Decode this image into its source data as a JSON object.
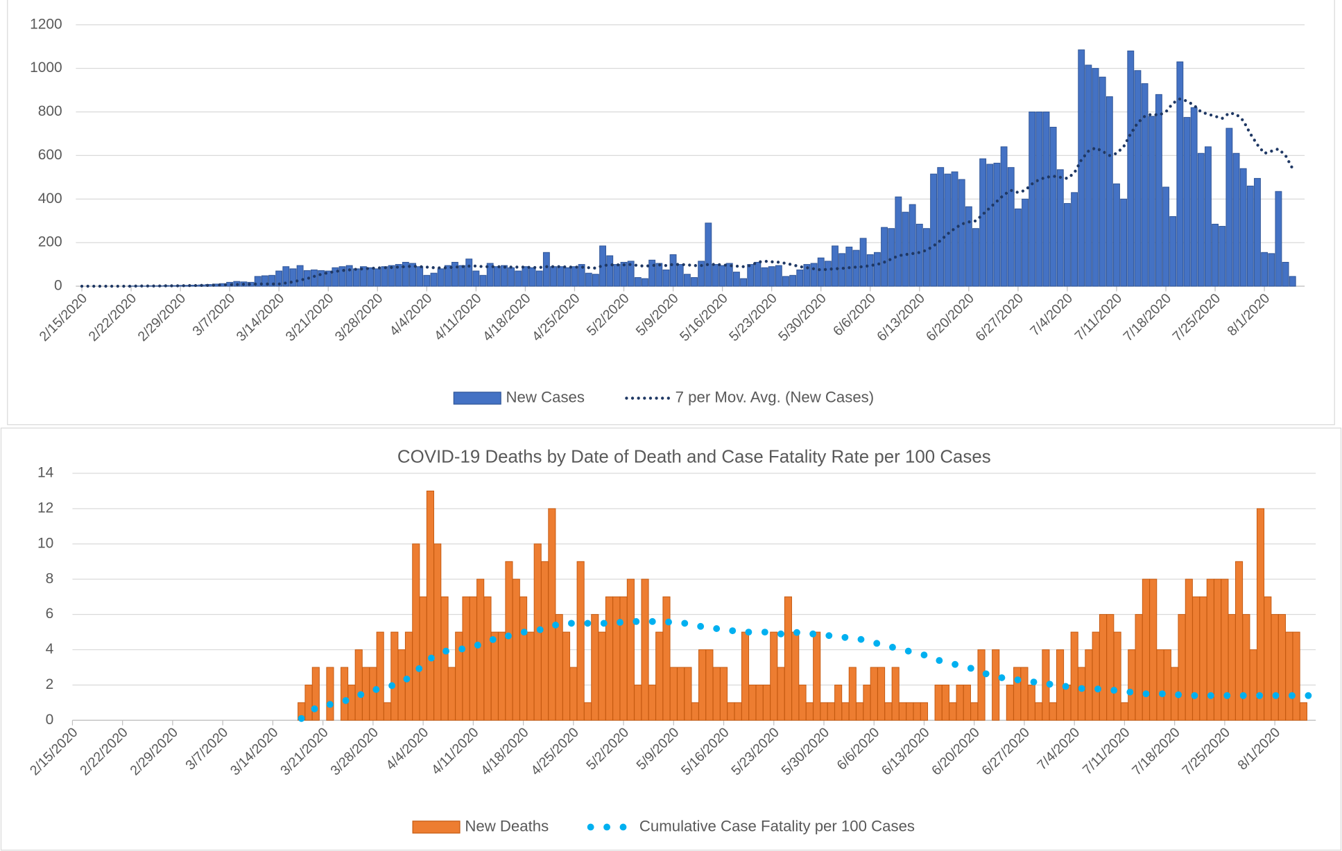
{
  "chart_data": [
    {
      "type": "bar",
      "categories": [
        "2/15/2020",
        null,
        null,
        null,
        null,
        null,
        null,
        "2/22/2020",
        null,
        null,
        null,
        null,
        null,
        null,
        "2/29/2020",
        null,
        null,
        null,
        null,
        null,
        null,
        "3/7/2020",
        null,
        null,
        null,
        null,
        null,
        null,
        "3/14/2020",
        null,
        null,
        null,
        null,
        null,
        null,
        "3/21/2020",
        null,
        null,
        null,
        null,
        null,
        null,
        "3/28/2020",
        null,
        null,
        null,
        null,
        null,
        null,
        "4/4/2020",
        null,
        null,
        null,
        null,
        null,
        null,
        "4/11/2020",
        null,
        null,
        null,
        null,
        null,
        null,
        "4/18/2020",
        null,
        null,
        null,
        null,
        null,
        null,
        "4/25/2020",
        null,
        null,
        null,
        null,
        null,
        null,
        "5/2/2020",
        null,
        null,
        null,
        null,
        null,
        null,
        "5/9/2020",
        null,
        null,
        null,
        null,
        null,
        null,
        "5/16/2020",
        null,
        null,
        null,
        null,
        null,
        null,
        "5/23/2020",
        null,
        null,
        null,
        null,
        null,
        null,
        "5/30/2020",
        null,
        null,
        null,
        null,
        null,
        null,
        "6/6/2020",
        null,
        null,
        null,
        null,
        null,
        null,
        "6/13/2020",
        null,
        null,
        null,
        null,
        null,
        null,
        "6/20/2020",
        null,
        null,
        null,
        null,
        null,
        null,
        "6/27/2020",
        null,
        null,
        null,
        null,
        null,
        null,
        "7/4/2020",
        null,
        null,
        null,
        null,
        null,
        null,
        "7/11/2020",
        null,
        null,
        null,
        null,
        null,
        null,
        "7/18/2020",
        null,
        null,
        null,
        null,
        null,
        null,
        "7/25/2020",
        null,
        null,
        null,
        null,
        null,
        null,
        "8/1/2020",
        null,
        null,
        null,
        null
      ],
      "series": [
        {
          "name": "New Cases",
          "type": "bar",
          "color": "#4472c4",
          "edge": "#2f5597",
          "values": [
            0,
            0,
            0,
            0,
            0,
            0,
            0,
            1,
            1,
            1,
            2,
            2,
            3,
            3,
            4,
            4,
            5,
            6,
            8,
            10,
            12,
            18,
            22,
            20,
            18,
            45,
            48,
            50,
            70,
            90,
            80,
            95,
            72,
            75,
            72,
            70,
            85,
            90,
            95,
            80,
            90,
            85,
            80,
            90,
            95,
            100,
            110,
            105,
            90,
            50,
            60,
            80,
            95,
            110,
            95,
            125,
            70,
            50,
            105,
            90,
            95,
            85,
            70,
            90,
            85,
            70,
            155,
            90,
            90,
            85,
            90,
            100,
            60,
            55,
            185,
            140,
            100,
            110,
            115,
            40,
            35,
            120,
            105,
            75,
            145,
            100,
            55,
            40,
            115,
            290,
            100,
            95,
            105,
            65,
            35,
            100,
            110,
            85,
            90,
            95,
            45,
            50,
            75,
            100,
            105,
            130,
            115,
            185,
            150,
            180,
            165,
            220,
            145,
            155,
            270,
            265,
            410,
            340,
            375,
            285,
            265,
            515,
            545,
            515,
            525,
            490,
            365,
            265,
            585,
            560,
            565,
            640,
            545,
            355,
            400,
            800,
            800,
            800,
            730,
            535,
            380,
            430,
            1085,
            1015,
            1000,
            960,
            870,
            470,
            400,
            1080,
            990,
            930,
            780,
            880,
            455,
            320,
            1030,
            775,
            820,
            610,
            640,
            285,
            275,
            725,
            610,
            540,
            460,
            495,
            155,
            150,
            435,
            110,
            45
          ]
        },
        {
          "name": "7 per Mov. Avg. (New Cases)",
          "type": "line",
          "style": "dotted",
          "color": "#1f3864",
          "values": [
            0,
            0,
            0,
            0,
            0,
            0,
            0,
            0,
            1,
            1,
            1,
            1,
            2,
            2,
            2,
            3,
            3,
            4,
            4,
            5,
            6,
            7,
            8,
            9,
            9,
            10,
            10,
            10,
            10,
            15,
            20,
            28,
            35,
            45,
            55,
            62,
            68,
            72,
            75,
            78,
            80,
            82,
            84,
            85,
            86,
            88,
            90,
            92,
            90,
            88,
            85,
            84,
            85,
            88,
            90,
            92,
            93,
            90,
            90,
            90,
            88,
            88,
            88,
            88,
            86,
            86,
            90,
            90,
            90,
            88,
            88,
            88,
            85,
            83,
            95,
            98,
            98,
            98,
            100,
            95,
            92,
            95,
            98,
            95,
            100,
            100,
            98,
            95,
            95,
            100,
            100,
            98,
            95,
            92,
            90,
            95,
            110,
            115,
            112,
            110,
            105,
            98,
            90,
            85,
            80,
            75,
            78,
            80,
            82,
            85,
            88,
            90,
            95,
            100,
            110,
            125,
            140,
            145,
            150,
            155,
            165,
            185,
            210,
            240,
            265,
            285,
            295,
            300,
            330,
            360,
            390,
            420,
            440,
            430,
            440,
            470,
            490,
            500,
            505,
            500,
            495,
            520,
            580,
            620,
            635,
            620,
            600,
            610,
            640,
            700,
            750,
            780,
            790,
            785,
            800,
            840,
            860,
            850,
            830,
            800,
            790,
            780,
            770,
            795,
            790,
            760,
            700,
            650,
            610,
            620,
            630,
            600,
            540
          ]
        }
      ],
      "ylim": [
        0,
        1200
      ],
      "yticks": [
        0,
        200,
        400,
        600,
        800,
        1000,
        1200
      ],
      "grid": true,
      "legend": "bottom"
    },
    {
      "type": "bar",
      "title": "COVID-19 Deaths by Date of Death and  Case Fatality Rate per 100 Cases",
      "categories": [
        "2/15/2020",
        null,
        null,
        null,
        null,
        null,
        null,
        "2/22/2020",
        null,
        null,
        null,
        null,
        null,
        null,
        "2/29/2020",
        null,
        null,
        null,
        null,
        null,
        null,
        "3/7/2020",
        null,
        null,
        null,
        null,
        null,
        null,
        "3/14/2020",
        null,
        null,
        null,
        null,
        null,
        null,
        "3/21/2020",
        null,
        null,
        null,
        null,
        null,
        null,
        "3/28/2020",
        null,
        null,
        null,
        null,
        null,
        null,
        "4/4/2020",
        null,
        null,
        null,
        null,
        null,
        null,
        "4/11/2020",
        null,
        null,
        null,
        null,
        null,
        null,
        "4/18/2020",
        null,
        null,
        null,
        null,
        null,
        null,
        "4/25/2020",
        null,
        null,
        null,
        null,
        null,
        null,
        "5/2/2020",
        null,
        null,
        null,
        null,
        null,
        null,
        "5/9/2020",
        null,
        null,
        null,
        null,
        null,
        null,
        "5/16/2020",
        null,
        null,
        null,
        null,
        null,
        null,
        "5/23/2020",
        null,
        null,
        null,
        null,
        null,
        null,
        "5/30/2020",
        null,
        null,
        null,
        null,
        null,
        null,
        "6/6/2020",
        null,
        null,
        null,
        null,
        null,
        null,
        "6/13/2020",
        null,
        null,
        null,
        null,
        null,
        null,
        "6/20/2020",
        null,
        null,
        null,
        null,
        null,
        null,
        "6/27/2020",
        null,
        null,
        null,
        null,
        null,
        null,
        "7/4/2020",
        null,
        null,
        null,
        null,
        null,
        null,
        "7/11/2020",
        null,
        null,
        null,
        null,
        null,
        null,
        "7/18/2020",
        null,
        null,
        null,
        null,
        null,
        null,
        "7/25/2020",
        null,
        null,
        null,
        null,
        null,
        null,
        "8/1/2020",
        null,
        null,
        null,
        null,
        null
      ],
      "series": [
        {
          "name": "New Deaths",
          "type": "bar",
          "color": "#ed7d31",
          "edge": "#c55a11",
          "values": [
            null,
            null,
            null,
            null,
            null,
            null,
            null,
            null,
            null,
            null,
            null,
            null,
            null,
            null,
            null,
            null,
            null,
            null,
            null,
            null,
            null,
            null,
            null,
            null,
            null,
            null,
            null,
            null,
            null,
            null,
            null,
            null,
            1,
            2,
            3,
            0,
            3,
            0,
            3,
            2,
            4,
            3,
            3,
            5,
            1,
            5,
            4,
            5,
            10,
            7,
            13,
            10,
            7,
            3,
            5,
            7,
            7,
            8,
            7,
            5,
            5,
            9,
            8,
            7,
            5,
            10,
            9,
            12,
            6,
            5,
            3,
            9,
            1,
            6,
            5,
            7,
            7,
            7,
            8,
            2,
            8,
            2,
            5,
            7,
            3,
            3,
            3,
            1,
            4,
            4,
            3,
            3,
            1,
            1,
            5,
            2,
            2,
            2,
            5,
            3,
            7,
            5,
            2,
            1,
            5,
            1,
            1,
            2,
            1,
            3,
            1,
            2,
            3,
            3,
            1,
            3,
            1,
            1,
            1,
            1,
            0,
            2,
            2,
            1,
            2,
            2,
            1,
            4,
            0,
            4,
            0,
            2,
            3,
            3,
            2,
            1,
            4,
            1,
            4,
            2,
            5,
            3,
            4,
            5,
            6,
            6,
            5,
            1,
            4,
            6,
            8,
            8,
            4,
            4,
            3,
            6,
            8,
            7,
            7,
            8,
            8,
            8,
            6,
            9,
            6,
            4,
            12,
            7,
            6,
            6,
            5,
            5,
            1,
            null
          ]
        },
        {
          "name": "Cumulative Case Fatality per 100 Cases",
          "type": "line",
          "style": "dotted",
          "color": "#00b0f0",
          "values": [
            null,
            null,
            null,
            null,
            null,
            null,
            null,
            null,
            null,
            null,
            null,
            null,
            null,
            null,
            null,
            null,
            null,
            null,
            null,
            null,
            null,
            null,
            null,
            null,
            null,
            null,
            null,
            null,
            null,
            null,
            null,
            null,
            0.1,
            0.4,
            0.7,
            0.8,
            0.9,
            1.0,
            1.1,
            1.2,
            1.4,
            1.6,
            1.7,
            1.8,
            1.9,
            2.0,
            2.2,
            2.4,
            2.8,
            3.1,
            3.5,
            3.7,
            3.9,
            4.0,
            4.0,
            4.1,
            4.2,
            4.3,
            4.5,
            4.6,
            4.6,
            4.8,
            4.9,
            5.0,
            5.0,
            5.1,
            5.2,
            5.3,
            5.5,
            5.5,
            5.5,
            5.5,
            5.5,
            5.5,
            5.5,
            5.5,
            5.5,
            5.6,
            5.6,
            5.6,
            5.6,
            5.6,
            5.6,
            5.6,
            5.5,
            5.5,
            5.5,
            5.4,
            5.3,
            5.2,
            5.2,
            5.1,
            5.1,
            5.0,
            5.0,
            5.0,
            5.0,
            5.0,
            4.9,
            4.9,
            5.0,
            5.0,
            4.9,
            4.9,
            4.9,
            4.8,
            4.8,
            4.7,
            4.7,
            4.6,
            4.6,
            4.5,
            4.4,
            4.3,
            4.2,
            4.1,
            4.0,
            3.9,
            3.8,
            3.7,
            3.6,
            3.4,
            3.3,
            3.2,
            3.1,
            3.0,
            2.9,
            2.7,
            2.6,
            2.5,
            2.4,
            2.4,
            2.3,
            2.2,
            2.2,
            2.1,
            2.1,
            2.0,
            2.0,
            1.9,
            1.9,
            1.8,
            1.8,
            1.8,
            1.7,
            1.7,
            1.7,
            1.6,
            1.6,
            1.6,
            1.5,
            1.5,
            1.5,
            1.5,
            1.5,
            1.4,
            1.4,
            1.4,
            1.4,
            1.4,
            1.4,
            1.4,
            1.4,
            1.4,
            1.4,
            1.4,
            1.4,
            1.4,
            1.4,
            1.4,
            1.4,
            1.4,
            1.4,
            1.4
          ]
        }
      ],
      "ylim": [
        0,
        14
      ],
      "yticks": [
        0,
        2,
        4,
        6,
        8,
        10,
        12,
        14
      ],
      "grid": true,
      "legend": "bottom"
    }
  ]
}
